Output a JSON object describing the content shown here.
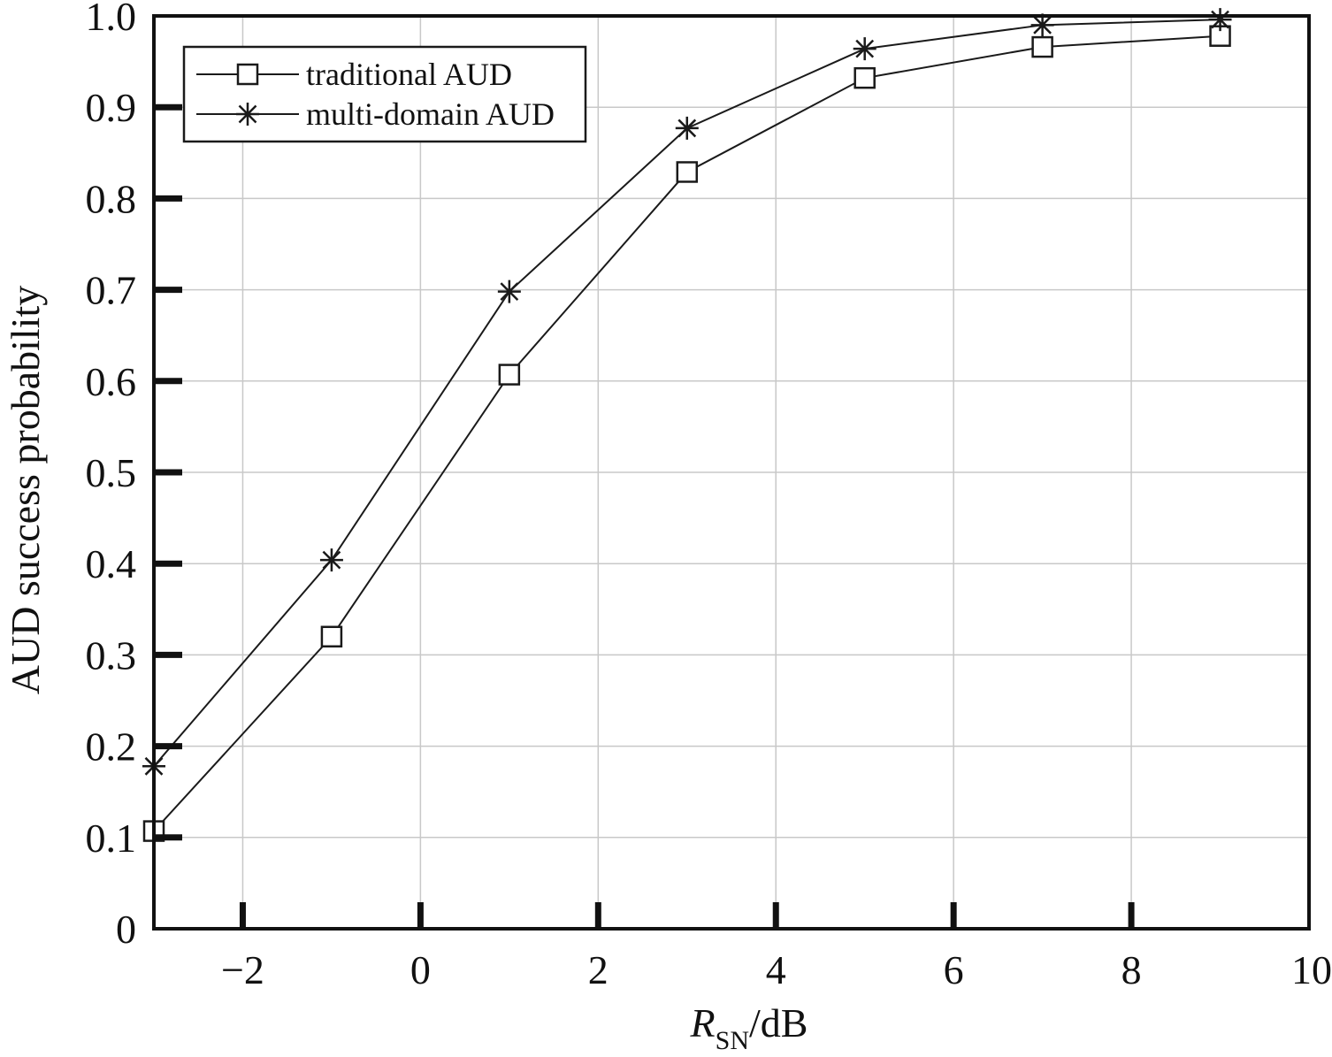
{
  "chart_data": {
    "type": "line",
    "xlabel": {
      "main": "R",
      "sub": "SN",
      "unit": "/dB"
    },
    "ylabel": "AUD success probability",
    "xlim": [
      -3,
      10
    ],
    "ylim": [
      0,
      1.0
    ],
    "x_ticks": [
      -2,
      0,
      2,
      4,
      6,
      8,
      10
    ],
    "x_tick_labels": [
      "−2",
      "0",
      "2",
      "4",
      "6",
      "8",
      "10"
    ],
    "y_ticks": [
      0,
      0.1,
      0.2,
      0.3,
      0.4,
      0.5,
      0.6,
      0.7,
      0.8,
      0.9,
      1.0
    ],
    "y_tick_labels": [
      "0",
      "0.1",
      "0.2",
      "0.3",
      "0.4",
      "0.5",
      "0.6",
      "0.7",
      "0.8",
      "0.9",
      "1.0"
    ],
    "grid": true,
    "legend_position": "top-left",
    "x": [
      -3,
      -1,
      1,
      3,
      5,
      7,
      9
    ],
    "series": [
      {
        "name": "traditional AUD",
        "marker": "square",
        "values": [
          0.107,
          0.32,
          0.607,
          0.829,
          0.932,
          0.966,
          0.978
        ]
      },
      {
        "name": "multi-domain AUD",
        "marker": "asterisk",
        "values": [
          0.178,
          0.404,
          0.698,
          0.877,
          0.964,
          0.99,
          0.996
        ]
      }
    ],
    "colors": {
      "line": "#1a1a1a",
      "grid": "#c8c8c8",
      "axis": "#111111"
    }
  }
}
